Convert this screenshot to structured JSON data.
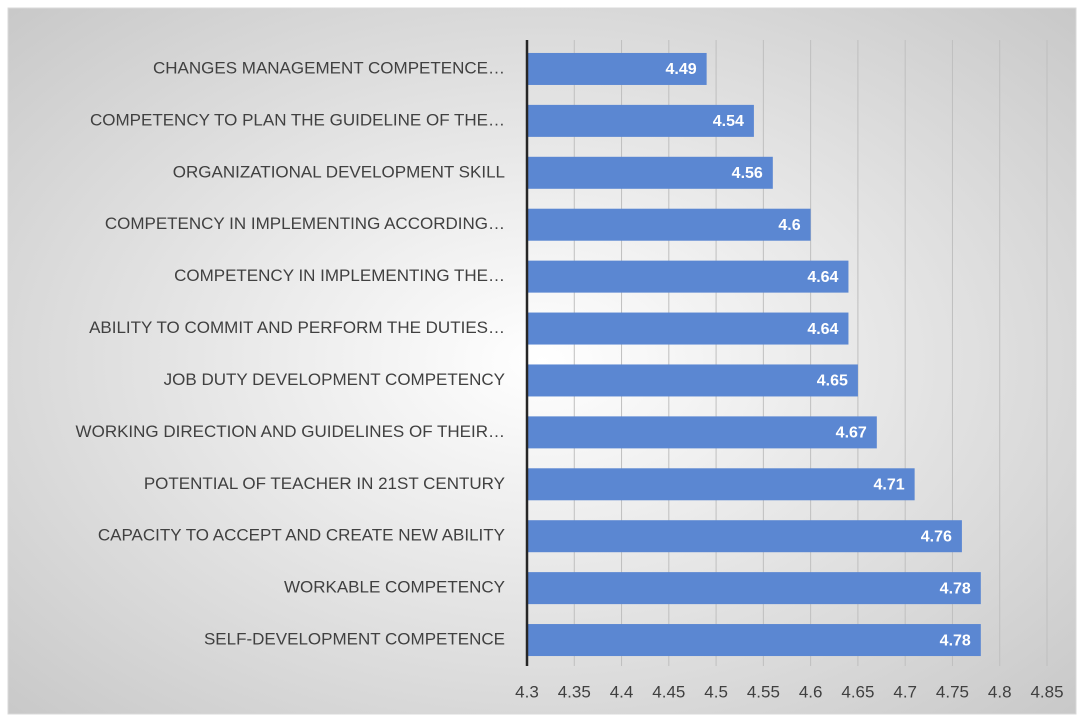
{
  "chart_data": {
    "type": "bar",
    "orientation": "horizontal",
    "categories": [
      "CHANGES MANAGEMENT COMPETENCE…",
      "COMPETENCY TO PLAN THE GUIDELINE OF THE…",
      "ORGANIZATIONAL DEVELOPMENT SKILL",
      "COMPETENCY IN IMPLEMENTING ACCORDING…",
      "COMPETENCY IN IMPLEMENTING THE…",
      "ABILITY TO COMMIT AND PERFORM THE DUTIES…",
      "JOB DUTY DEVELOPMENT COMPETENCY",
      "WORKING DIRECTION AND GUIDELINES OF THEIR…",
      "POTENTIAL OF TEACHER IN 21ST CENTURY",
      "CAPACITY TO ACCEPT AND CREATE NEW ABILITY",
      "WORKABLE COMPETENCY",
      "SELF-DEVELOPMENT COMPETENCE"
    ],
    "values": [
      4.49,
      4.54,
      4.56,
      4.6,
      4.64,
      4.64,
      4.65,
      4.67,
      4.71,
      4.76,
      4.78,
      4.78
    ],
    "color": "#5b87d2",
    "xlim": [
      4.3,
      4.85
    ],
    "xticks": [
      4.3,
      4.35,
      4.4,
      4.45,
      4.5,
      4.55,
      4.6,
      4.65,
      4.7,
      4.75,
      4.8,
      4.85
    ],
    "grid": true
  }
}
